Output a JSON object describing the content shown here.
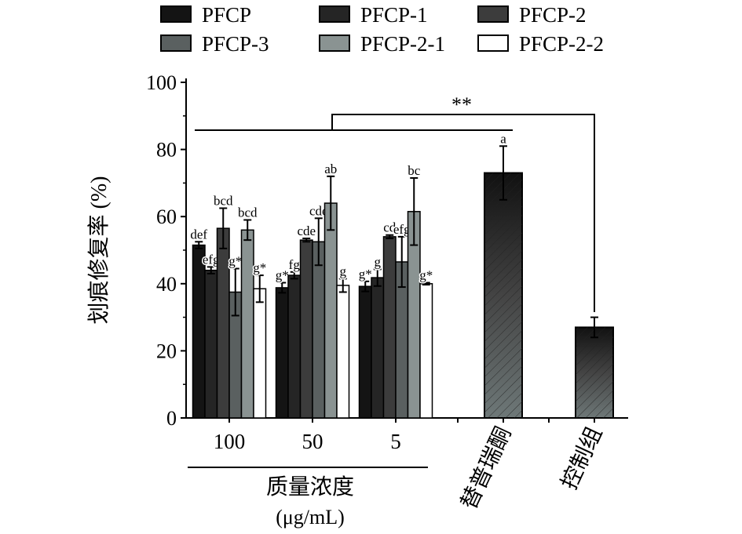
{
  "chart_data": {
    "type": "bar",
    "ylabel": "划痕修复率 (%)",
    "xlabel": "质量浓度",
    "xlabel_unit": "(μg/mL)",
    "ylim": [
      0,
      100
    ],
    "yticks": [
      "0",
      "20",
      "40",
      "60",
      "80",
      "100"
    ],
    "categories": [
      "100",
      "50",
      "5"
    ],
    "series": [
      {
        "name": "PFCP",
        "color": "#141414",
        "values": [
          51.5,
          38.8,
          39.2
        ],
        "errors": [
          1,
          1.5,
          1.5
        ],
        "labels": [
          "def",
          "g*",
          "g*"
        ]
      },
      {
        "name": "PFCP-1",
        "color": "#252525",
        "values": [
          44,
          42.5,
          41.8
        ],
        "errors": [
          1,
          1,
          2.5
        ],
        "labels": [
          "efg",
          "fg",
          "g"
        ]
      },
      {
        "name": "PFCP-2",
        "color": "#3c3c3c",
        "values": [
          56.5,
          53,
          54
        ],
        "errors": [
          6,
          0.5,
          0.5
        ],
        "labels": [
          "bcd",
          "cde",
          "cd"
        ]
      },
      {
        "name": "PFCP-3",
        "color": "#5a6060",
        "values": [
          37.5,
          52.5,
          46.5
        ],
        "errors": [
          7,
          7,
          7.5
        ],
        "labels": [
          "g*",
          "cde",
          "efg"
        ]
      },
      {
        "name": "PFCP-2-1",
        "color": "#8a9392",
        "values": [
          56,
          64,
          61.5
        ],
        "errors": [
          3,
          8,
          10
        ],
        "labels": [
          "bcd",
          "ab",
          "bc"
        ]
      },
      {
        "name": "PFCP-2-2",
        "color": "#ffffff",
        "values": [
          38.5,
          39.5,
          40
        ],
        "errors": [
          4,
          2,
          0.3
        ],
        "labels": [
          "g*",
          "g",
          "g*"
        ]
      }
    ],
    "extra_bars": [
      {
        "name": "替普瑞酮",
        "value": 73,
        "error": 8,
        "label": "a"
      },
      {
        "name": "控制组",
        "value": 27,
        "error": 3,
        "label": ""
      }
    ],
    "significance": "**"
  }
}
